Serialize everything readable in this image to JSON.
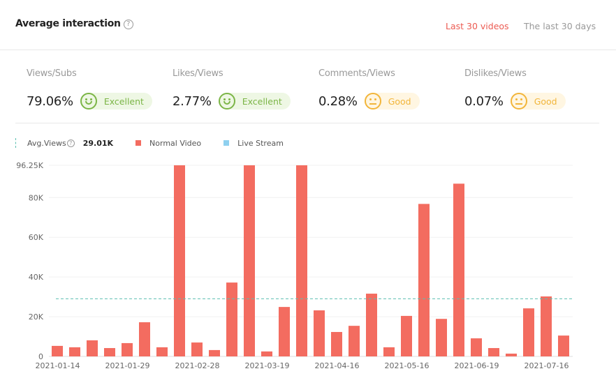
{
  "header": {
    "title": "Average interaction",
    "help_icon": "question-circle-icon",
    "tabs": [
      {
        "label": "Last 30 videos",
        "active": true
      },
      {
        "label": "The last 30 days",
        "active": false
      }
    ]
  },
  "metrics": [
    {
      "label": "Views/Subs",
      "value": "79.06%",
      "rating": "Excellent",
      "icon": "smile-icon"
    },
    {
      "label": "Likes/Views",
      "value": "2.77%",
      "rating": "Excellent",
      "icon": "smile-icon"
    },
    {
      "label": "Comments/Views",
      "value": "0.28%",
      "rating": "Good",
      "icon": "neutral-face-icon"
    },
    {
      "label": "Dislikes/Views",
      "value": "0.07%",
      "rating": "Good",
      "icon": "neutral-face-icon"
    }
  ],
  "legend": {
    "avg_label": "Avg.Views",
    "avg_value": "29.01K",
    "normal": "Normal Video",
    "live": "Live Stream"
  },
  "colors": {
    "normal": "#f36c60",
    "live": "#8fd0ef",
    "avg_line": "#5bbfb0",
    "accent": "#ec5b52"
  },
  "chart_data": {
    "type": "bar",
    "average": 29010,
    "ylim": [
      0,
      96250
    ],
    "yticks": [
      {
        "v": 0,
        "label": "0"
      },
      {
        "v": 20000,
        "label": "20K"
      },
      {
        "v": 40000,
        "label": "40K"
      },
      {
        "v": 60000,
        "label": "60K"
      },
      {
        "v": 80000,
        "label": "80K"
      },
      {
        "v": 96250,
        "label": "96.25K"
      }
    ],
    "xtick_labels": [
      "2021-01-14",
      "2021-01-29",
      "2021-02-28",
      "2021-03-19",
      "2021-04-16",
      "2021-05-16",
      "2021-06-19",
      "2021-07-16"
    ],
    "grid": true,
    "series": [
      {
        "name": "Normal Video",
        "values": [
          5300,
          4600,
          8100,
          4200,
          6700,
          17200,
          4600,
          96250,
          7000,
          3200,
          37200,
          96250,
          2500,
          24900,
          96250,
          23200,
          12300,
          15400,
          31600,
          4600,
          20400,
          76800,
          18900,
          87000,
          9100,
          4200,
          1400,
          24200,
          30200,
          10500
        ]
      }
    ]
  }
}
